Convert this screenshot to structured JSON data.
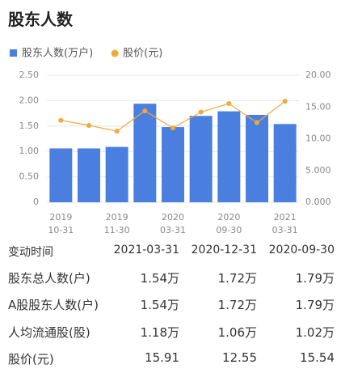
{
  "title": "股东人数",
  "chart_data": {
    "type": "bar-line",
    "categories": [
      "2019\n10-31",
      null,
      "2019\n11-30",
      null,
      "2020\n03-31",
      null,
      "2020\n09-30",
      null,
      "2021\n03-31"
    ],
    "series": [
      {
        "name": "股东人数(万户)",
        "color": "#4a7fe0",
        "type": "bar",
        "values": [
          1.06,
          1.06,
          1.09,
          1.94,
          1.48,
          1.7,
          1.79,
          1.72,
          1.54
        ]
      },
      {
        "name": "股价(元)",
        "color": "#f0a93a",
        "type": "line",
        "axis": "y2",
        "values": [
          12.9,
          12.1,
          11.2,
          14.4,
          11.7,
          14.2,
          15.54,
          12.55,
          15.91
        ]
      }
    ],
    "ylim": [
      0,
      2.5
    ],
    "yticks": [
      0,
      {
        "value": 0.5,
        "label": "0.50"
      },
      {
        "value": 1,
        "label": "1.00"
      },
      {
        "value": 1.5,
        "label": "1.50"
      },
      {
        "value": 2,
        "label": "2.00"
      },
      {
        "value": 2.5,
        "label": "2.50"
      }
    ],
    "y2lim": [
      0,
      20
    ],
    "y2ticks": [
      {
        "value": 0,
        "label": "0.000"
      },
      {
        "value": 5,
        "label": "5.000"
      },
      {
        "value": 10,
        "label": "10.00"
      },
      {
        "value": 15,
        "label": "15.00"
      },
      {
        "value": 20,
        "label": "20.00"
      }
    ],
    "grid": true
  },
  "table": {
    "header": [
      "变动时间",
      "2021-03-31",
      "2020-12-31",
      "2020-09-30"
    ],
    "rows": [
      [
        "股东总人数(户)",
        "1.54万",
        "1.72万",
        "1.79万"
      ],
      [
        "A股股东人数(户)",
        "1.54万",
        "1.72万",
        "1.79万"
      ],
      [
        "人均流通股(股)",
        "1.18万",
        "1.06万",
        "1.02万"
      ],
      [
        "股价(元)",
        "15.91",
        "12.55",
        "15.54"
      ]
    ]
  }
}
